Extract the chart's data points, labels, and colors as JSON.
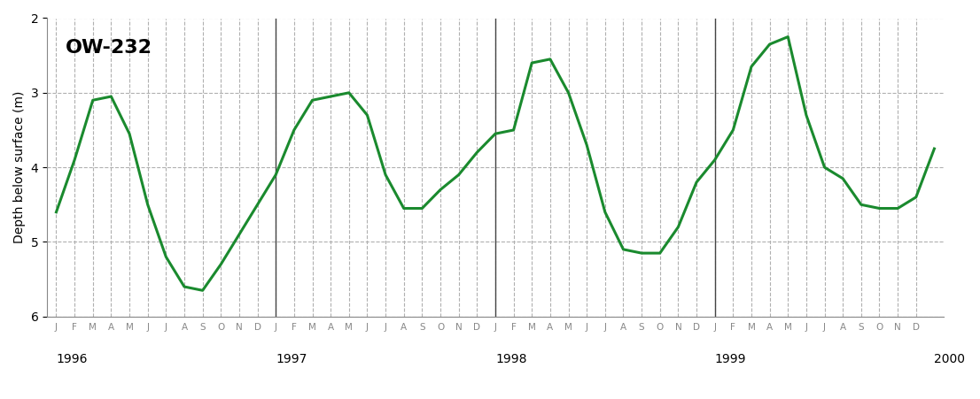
{
  "title": "OW-232",
  "ylabel": "Depth below surface (m)",
  "line_color": "#1a8a2e",
  "line_width": 2.2,
  "background_color": "#ffffff",
  "ylim": [
    6,
    2
  ],
  "yticks": [
    2,
    3,
    4,
    5,
    6
  ],
  "months": [
    "J",
    "F",
    "M",
    "A",
    "M",
    "J",
    "J",
    "A",
    "S",
    "O",
    "N",
    "D"
  ],
  "year_labels": [
    "1996",
    "1997",
    "1998",
    "1999",
    "2000"
  ],
  "year_x_positions": [
    0,
    12,
    24,
    36,
    48
  ],
  "data_x": [
    0,
    1,
    2,
    3,
    4,
    5,
    6,
    7,
    8,
    9,
    10,
    11,
    12,
    13,
    14,
    15,
    16,
    17,
    18,
    19,
    20,
    21,
    22,
    23,
    24,
    25,
    26,
    27,
    28,
    29,
    30,
    31,
    32,
    33,
    34,
    35,
    36,
    37,
    38,
    39,
    40,
    41,
    42,
    43,
    44,
    45,
    46,
    47,
    48
  ],
  "data_y": [
    4.6,
    3.9,
    3.1,
    3.05,
    3.55,
    4.5,
    5.2,
    5.6,
    5.65,
    5.3,
    4.9,
    4.5,
    4.1,
    3.5,
    3.1,
    3.05,
    3.0,
    3.3,
    4.1,
    4.55,
    4.55,
    4.3,
    4.1,
    3.8,
    3.55,
    3.5,
    2.6,
    2.55,
    3.0,
    3.7,
    4.6,
    5.1,
    5.15,
    5.15,
    4.8,
    4.2,
    3.9,
    3.5,
    2.65,
    2.35,
    2.25,
    3.3,
    4.0,
    4.15,
    4.5,
    4.55,
    4.55,
    4.4,
    3.75
  ],
  "vline_positions": [
    12,
    24,
    36
  ],
  "grid_color": "#b0b0b0",
  "grid_linestyle": "--",
  "vline_color": "#444444",
  "spine_color": "#888888"
}
